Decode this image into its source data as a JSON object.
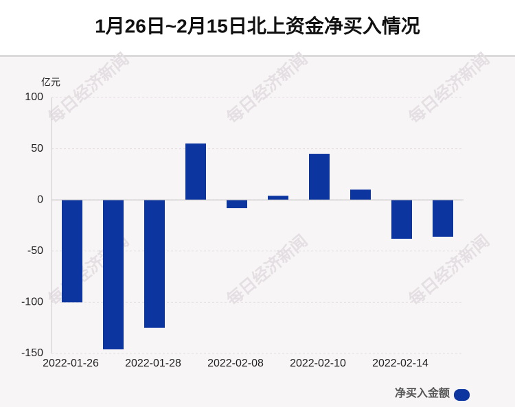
{
  "chart_data": {
    "type": "bar",
    "title": "1月26日~2月15日北上资金净买入情况",
    "y_unit": "亿元",
    "watermark": "每日经济新闻",
    "categories": [
      "2022-01-26",
      null,
      "2022-01-28",
      null,
      "2022-02-08",
      null,
      "2022-02-10",
      null,
      "2022-02-14",
      null
    ],
    "series": [
      {
        "name": "净买入金额",
        "color": "#0c35a0",
        "values": [
          -100,
          -146,
          -125,
          55,
          -8,
          4,
          45,
          10,
          -38,
          -36
        ]
      }
    ],
    "ylim": [
      -150,
      100
    ],
    "yticks": [
      100,
      50,
      0,
      -50,
      -100,
      -150
    ],
    "grid": true,
    "legend": "bottom-right"
  }
}
